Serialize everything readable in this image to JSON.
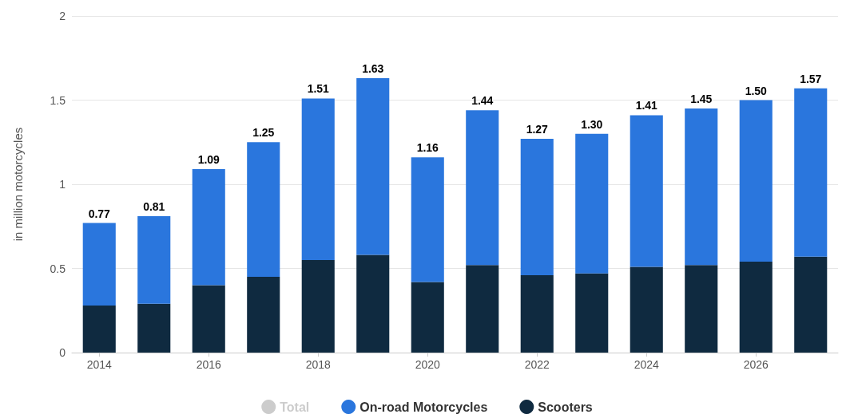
{
  "chart_data": {
    "type": "bar",
    "ylabel": "in million motorcycles",
    "stacked": true,
    "categories": [
      "2014",
      null,
      "2016",
      null,
      "2018",
      null,
      "2020",
      null,
      "2022",
      null,
      "2024",
      null,
      "2026",
      null
    ],
    "series": [
      {
        "name": "Scooters",
        "color": "#0f2a40",
        "values": [
          0.28,
          0.29,
          0.4,
          0.45,
          0.55,
          0.58,
          0.42,
          0.52,
          0.46,
          0.47,
          0.51,
          0.52,
          0.54,
          0.57
        ]
      },
      {
        "name": "On-road Motorcycles",
        "color": "#2a76dd",
        "values": [
          0.49,
          0.52,
          0.69,
          0.8,
          0.96,
          1.05,
          0.74,
          0.92,
          0.81,
          0.83,
          0.9,
          0.93,
          0.96,
          1.0
        ]
      },
      {
        "name": "Total",
        "color": "#cccccc",
        "values": [
          null,
          null,
          null,
          null,
          null,
          null,
          null,
          null,
          null,
          null,
          null,
          null,
          null,
          null
        ]
      }
    ],
    "totals": [
      "0.77",
      "0.81",
      "1.09",
      "1.25",
      "1.51",
      "1.63",
      "1.16",
      "1.44",
      "1.27",
      "1.30",
      "1.41",
      "1.45",
      "1.50",
      "1.57"
    ],
    "ylim": [
      0,
      2
    ],
    "yticks": [
      0,
      0.5,
      1,
      1.5,
      2
    ],
    "grid": "y",
    "legend": "bottom"
  }
}
